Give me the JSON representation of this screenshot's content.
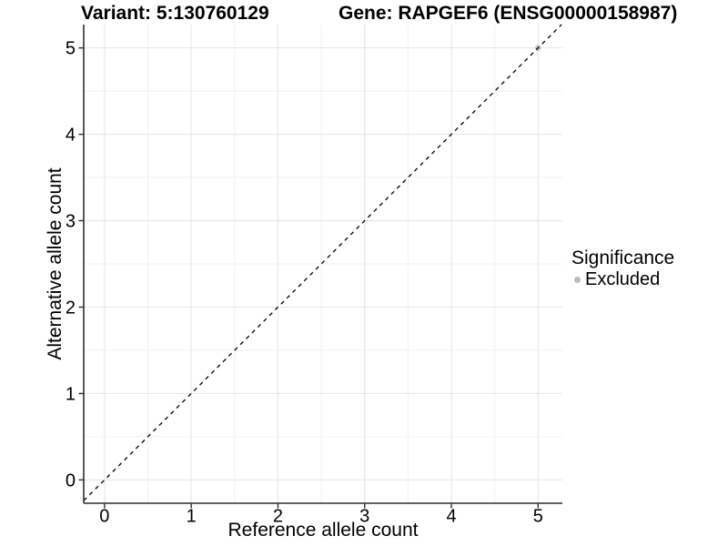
{
  "chart_data": {
    "type": "scatter",
    "title_left": "Variant: 5:130760129",
    "title_right": "Gene: RAPGEF6 (ENSG00000158987)",
    "xlabel": "Reference allele count",
    "ylabel": "Alternative allele count",
    "x_ticks": [
      0,
      1,
      2,
      3,
      4,
      5
    ],
    "y_ticks": [
      0,
      1,
      2,
      3,
      4,
      5
    ],
    "x_minor": [
      0.5,
      1.5,
      2.5,
      3.5,
      4.5
    ],
    "y_minor": [
      0.5,
      1.5,
      2.5,
      3.5,
      4.5
    ],
    "xlim": [
      -0.24,
      5.28
    ],
    "ylim": [
      -0.27,
      5.27
    ],
    "grid": "major-and-minor",
    "reference_line": {
      "equation": "y = x",
      "style": "dashed",
      "color": "#000000"
    },
    "series": [
      {
        "name": "Excluded",
        "color": "#bcbcbc",
        "points": [
          {
            "x": 5,
            "y": 5
          }
        ]
      }
    ],
    "legend": {
      "position": "right",
      "title": "Significance",
      "entries": [
        {
          "label": "Excluded",
          "color": "#bcbcbc"
        }
      ]
    },
    "colors": {
      "grid_major": "#e4e4e4",
      "grid_minor": "#f0f0f0",
      "axis_line": "#2e2e2e",
      "tick_mark": "#2e2e2e",
      "tick_label": "#000000"
    }
  }
}
